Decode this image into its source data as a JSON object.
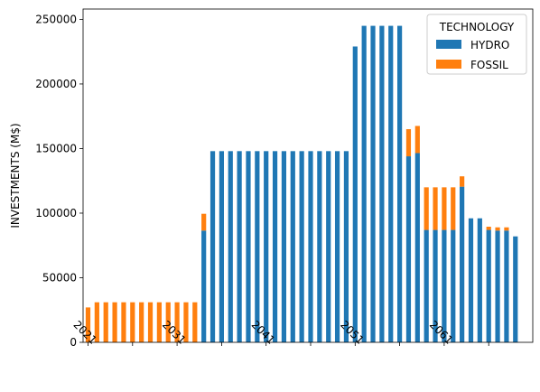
{
  "chart_data": {
    "type": "bar",
    "stacked": true,
    "ylabel": "INVESTMENTS (M$)",
    "xlabel": "",
    "ylim": [
      0,
      258000
    ],
    "yticks": [
      0,
      50000,
      100000,
      150000,
      200000,
      250000
    ],
    "categories": [
      2021,
      2022,
      2023,
      2024,
      2025,
      2026,
      2027,
      2028,
      2029,
      2030,
      2031,
      2032,
      2033,
      2034,
      2035,
      2036,
      2037,
      2038,
      2039,
      2040,
      2041,
      2042,
      2043,
      2044,
      2045,
      2046,
      2047,
      2048,
      2049,
      2050,
      2051,
      2052,
      2053,
      2054,
      2055,
      2056,
      2057,
      2058,
      2059,
      2060,
      2061,
      2062,
      2063,
      2064,
      2065,
      2066,
      2067,
      2068,
      2069,
      2070
    ],
    "xtick_labels": [
      "2021",
      "2031",
      "2041",
      "2051",
      "2061"
    ],
    "legend": {
      "title": "TECHNOLOGY",
      "placement": "top-right"
    },
    "series": [
      {
        "name": "HYDRO",
        "color": "#1f77b4",
        "values": [
          0,
          0,
          0,
          0,
          0,
          0,
          0,
          0,
          0,
          0,
          0,
          0,
          0,
          86500,
          148000,
          148000,
          148000,
          148000,
          148000,
          148000,
          148000,
          148000,
          148000,
          148000,
          148000,
          148000,
          148000,
          148000,
          148000,
          148000,
          229000,
          245000,
          245000,
          245000,
          245000,
          245000,
          144000,
          146500,
          87000,
          87000,
          87000,
          87000,
          120500,
          96000,
          96000,
          87000,
          86500,
          86500,
          82000,
          0
        ]
      },
      {
        "name": "FOSSIL",
        "color": "#ff7f0e",
        "values": [
          27000,
          31000,
          31000,
          31000,
          31000,
          31000,
          31000,
          31000,
          31000,
          31000,
          31000,
          31000,
          31000,
          13000,
          0,
          0,
          0,
          0,
          0,
          0,
          0,
          0,
          0,
          0,
          0,
          0,
          0,
          0,
          0,
          0,
          0,
          0,
          0,
          0,
          0,
          0,
          21000,
          21000,
          33000,
          33000,
          33000,
          33000,
          8000,
          0,
          0,
          2500,
          2500,
          2500,
          0,
          0
        ]
      }
    ]
  }
}
